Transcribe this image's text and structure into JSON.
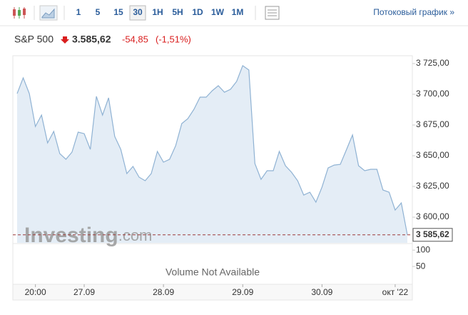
{
  "toolbar": {
    "intervals": [
      "1",
      "5",
      "15",
      "30",
      "1H",
      "5H",
      "1D",
      "1W",
      "1M"
    ],
    "selected_index": 3,
    "streaming_link": "Потоковый график »"
  },
  "header": {
    "symbol": "S&P 500",
    "price": "3.585,62",
    "change": "-54,85",
    "change_pct": "(-1,51%)"
  },
  "chart_data": {
    "type": "area",
    "color": "#8fb2d3",
    "categories": [
      null,
      null,
      null,
      "20:00",
      null,
      null,
      null,
      null,
      null,
      null,
      null,
      "27.09",
      null,
      null,
      null,
      null,
      null,
      null,
      null,
      null,
      null,
      null,
      null,
      null,
      "28.09",
      null,
      null,
      null,
      null,
      null,
      null,
      null,
      null,
      null,
      null,
      null,
      null,
      "29.09",
      null,
      null,
      null,
      null,
      null,
      null,
      null,
      null,
      null,
      null,
      null,
      null,
      "30.09",
      null,
      null,
      null,
      null,
      null,
      null,
      null,
      null,
      null,
      null,
      null,
      "окт '22",
      null,
      null
    ],
    "values": [
      3700.6,
      3713.4,
      3700.6,
      3673.8,
      3683.1,
      3660.5,
      3669.8,
      3651.7,
      3647.1,
      3652.9,
      3669.2,
      3668.0,
      3655.2,
      3698.3,
      3683.1,
      3697.1,
      3665.7,
      3655.2,
      3635.5,
      3641.3,
      3632.6,
      3629.7,
      3635.5,
      3653.5,
      3644.8,
      3647.1,
      3658.1,
      3676.2,
      3680.2,
      3687.8,
      3697.7,
      3697.7,
      3702.9,
      3707.0,
      3701.7,
      3704.1,
      3710.5,
      3723.3,
      3719.8,
      3643.6,
      3630.8,
      3637.8,
      3637.8,
      3653.5,
      3641.9,
      3636.6,
      3629.7,
      3618.0,
      3620.3,
      3612.2,
      3624.4,
      3640.1,
      3642.4,
      3643.0,
      3654.7,
      3666.9,
      3641.9,
      3637.8,
      3639.0,
      3639.0,
      3622.1,
      3620.3,
      3605.8,
      3611.6,
      3585.62
    ],
    "ylim": [
      3579.1,
      3731.4
    ],
    "yticks": [
      {
        "value": 3725,
        "label": "3 725,00"
      },
      {
        "value": 3700,
        "label": "3 700,00"
      },
      {
        "value": 3675,
        "label": "3 675,00"
      },
      {
        "value": 3650,
        "label": "3 650,00"
      },
      {
        "value": 3625,
        "label": "3 625,00"
      },
      {
        "value": 3600,
        "label": "3 600,00"
      }
    ],
    "last": {
      "value": 3585.62,
      "label": "3 585,62"
    },
    "watermark": [
      "Investing",
      ".com"
    ],
    "volume": {
      "label": "Volume Not Available",
      "ylim": [
        0,
        120
      ],
      "yticks": [
        100,
        50
      ]
    }
  }
}
